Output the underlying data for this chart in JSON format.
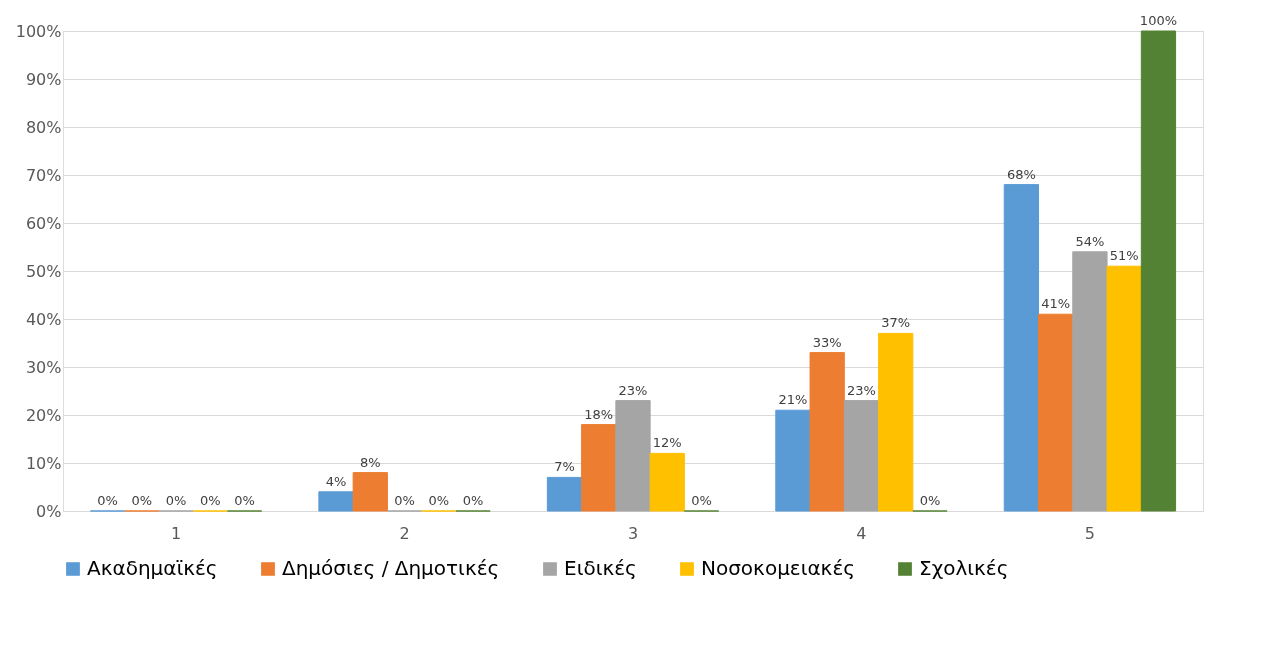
{
  "chart_data": {
    "type": "bar",
    "categories": [
      "1",
      "2",
      "3",
      "4",
      "5"
    ],
    "series": [
      {
        "name": "Ακαδημαϊκές",
        "color": "#5b9bd5",
        "values": [
          0,
          4,
          7,
          21,
          68
        ],
        "value_labels": [
          "0%",
          "4%",
          "7%",
          "21%",
          "68%"
        ]
      },
      {
        "name": "Δημόσιες / Δημοτικές",
        "color": "#ed7d31",
        "values": [
          0,
          8,
          18,
          33,
          41
        ],
        "value_labels": [
          "0%",
          "8%",
          "18%",
          "33%",
          "41%"
        ]
      },
      {
        "name": "Ειδικές",
        "color": "#a5a5a5",
        "values": [
          0,
          0,
          23,
          23,
          54
        ],
        "value_labels": [
          "0%",
          "0%",
          "23%",
          "23%",
          "54%"
        ]
      },
      {
        "name": "Νοσοκομειακές",
        "color": "#ffc000",
        "values": [
          0,
          0,
          12,
          37,
          51
        ],
        "value_labels": [
          "0%",
          "0%",
          "12%",
          "37%",
          "51%"
        ]
      },
      {
        "name": "Σχολικές",
        "color": "#548235",
        "values": [
          0,
          0,
          0,
          0,
          100
        ],
        "value_labels": [
          "0%",
          "0%",
          "0%",
          "0%",
          "100%"
        ]
      }
    ],
    "ylim": [
      0,
      100
    ],
    "yticks": [
      {
        "value": 0,
        "label": "0%"
      },
      {
        "value": 10,
        "label": "10%"
      },
      {
        "value": 20,
        "label": "20%"
      },
      {
        "value": 30,
        "label": "30%"
      },
      {
        "value": 40,
        "label": "40%"
      },
      {
        "value": 50,
        "label": "50%"
      },
      {
        "value": 60,
        "label": "60%"
      },
      {
        "value": 70,
        "label": "70%"
      },
      {
        "value": 80,
        "label": "80%"
      },
      {
        "value": 90,
        "label": "90%"
      },
      {
        "value": 100,
        "label": "100%"
      }
    ],
    "grid": "y",
    "legend": "bottom"
  }
}
